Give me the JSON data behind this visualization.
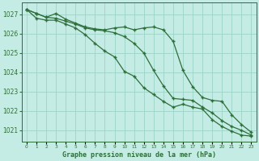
{
  "title": "Graphe pression niveau de la mer (hPa)",
  "xlabel": "Graphe pression niveau de la mer (hPa)",
  "background_color": "#c5ece4",
  "grid_color": "#9dd4c8",
  "line_color": "#2d6e3a",
  "ylim": [
    1020.4,
    1027.6
  ],
  "yticks": [
    1021,
    1022,
    1023,
    1024,
    1025,
    1026,
    1027
  ],
  "line1_x": [
    0,
    1,
    2,
    3,
    4,
    5,
    6,
    7,
    8,
    9,
    10,
    11,
    12,
    13,
    14,
    15,
    16,
    17,
    18,
    19,
    20,
    21,
    22,
    23
  ],
  "line1_y": [
    1027.25,
    1027.05,
    1026.85,
    1027.05,
    1026.75,
    1026.55,
    1026.35,
    1026.25,
    1026.2,
    1026.3,
    1026.35,
    1026.2,
    1026.3,
    1026.35,
    1026.2,
    1025.6,
    1024.1,
    1023.25,
    1022.7,
    1022.55,
    1022.5,
    1021.8,
    1021.3,
    1020.9
  ],
  "line2_x": [
    0,
    1,
    2,
    3,
    4,
    5,
    6,
    7,
    8,
    9,
    10,
    11,
    12,
    13,
    14,
    15,
    16,
    17,
    18,
    19,
    20,
    21,
    22,
    23
  ],
  "line2_y": [
    1027.25,
    1027.05,
    1026.85,
    1026.8,
    1026.65,
    1026.5,
    1026.3,
    1026.2,
    1026.15,
    1026.05,
    1025.85,
    1025.5,
    1025.0,
    1024.1,
    1023.3,
    1022.65,
    1022.6,
    1022.55,
    1022.2,
    1021.9,
    1021.5,
    1021.2,
    1021.0,
    1020.75
  ],
  "line3_x": [
    0,
    1,
    2,
    3,
    4,
    5,
    6,
    7,
    8,
    9,
    10,
    11,
    12,
    13,
    14,
    15,
    16,
    17,
    18,
    19,
    20,
    21,
    22,
    23
  ],
  "line3_y": [
    1027.25,
    1026.8,
    1026.7,
    1026.7,
    1026.5,
    1026.3,
    1025.95,
    1025.5,
    1025.1,
    1024.8,
    1024.05,
    1023.8,
    1023.2,
    1022.85,
    1022.5,
    1022.2,
    1022.35,
    1022.2,
    1022.1,
    1021.55,
    1021.2,
    1020.95,
    1020.75,
    1020.7
  ]
}
